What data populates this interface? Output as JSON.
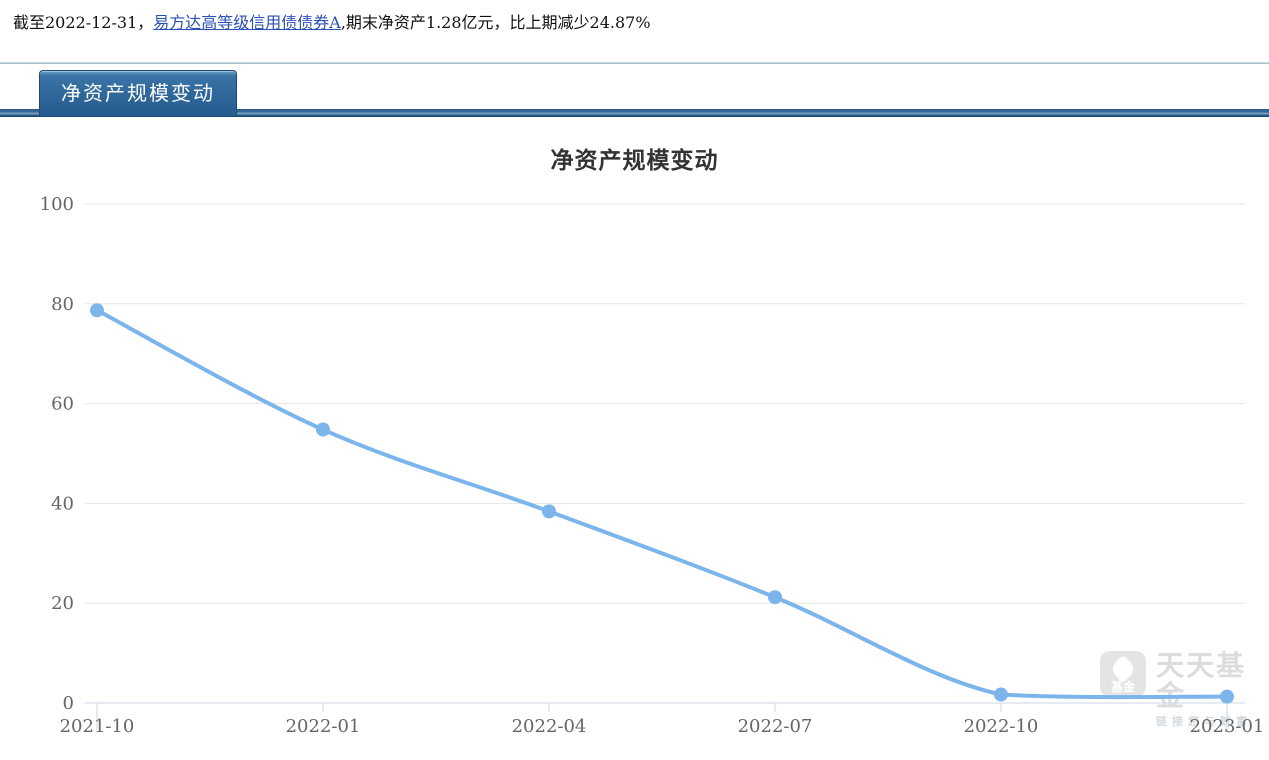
{
  "header": {
    "as_of_prefix": "截至2022-12-31，",
    "fund_name": "易方达高等级信用债债券A",
    "detail": ",期末净资产1.28亿元，比上期减少24.87%"
  },
  "tab": {
    "label": "净资产规模变动"
  },
  "chart_data": {
    "type": "line",
    "smooth": true,
    "title": "净资产规模变动",
    "categories": [
      "2021-10",
      "2022-01",
      "2022-04",
      "2022-07",
      "2022-10",
      "2023-01"
    ],
    "values": [
      78.7,
      54.8,
      38.4,
      21.2,
      1.7,
      1.28
    ],
    "ylim": [
      0,
      100
    ],
    "yticks": [
      0,
      20,
      40,
      60,
      80,
      100
    ],
    "grid": true,
    "legend": "none",
    "colors": {
      "line": "#7cb5ec",
      "grid": "#e6e6e6",
      "axis": "#ccd6eb",
      "label": "#666666",
      "title": "#333333",
      "link": "#2b50b4",
      "tab_blue": "#2f6699",
      "watermark_gray": "#dcdcdc"
    }
  },
  "watermark": {
    "logo_text": "基金",
    "brand": "天天基金",
    "slogan": "链接您与财富"
  }
}
